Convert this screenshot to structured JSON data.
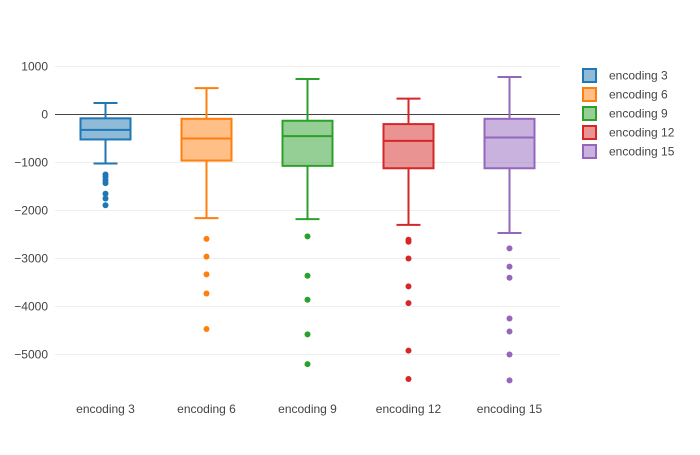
{
  "chart_data": {
    "type": "box",
    "title": "",
    "xlabel": "",
    "ylabel": "",
    "ylim": [
      -5900,
      1100
    ],
    "yticks": [
      1000,
      0,
      -1000,
      -2000,
      -3000,
      -4000,
      -5000
    ],
    "ytick_labels": [
      "1000",
      "0",
      "−1000",
      "−2000",
      "−3000",
      "−4000",
      "−5000"
    ],
    "grid": true,
    "legend_position": "top-right",
    "categories": [
      "encoding 3",
      "encoding 6",
      "encoding 9",
      "encoding 12",
      "encoding 15"
    ],
    "series": [
      {
        "name": "encoding 3",
        "color": "#1f77b4",
        "fill": "rgba(31,119,180,0.5)",
        "whisker_low": -1020,
        "q1": -520,
        "median": -320,
        "q3": -80,
        "whisker_high": 240,
        "outliers": [
          -1250,
          -1300,
          -1370,
          -1430,
          -1650,
          -1750,
          -1890
        ]
      },
      {
        "name": "encoding 6",
        "color": "#ff7f0e",
        "fill": "rgba(255,127,14,0.5)",
        "whisker_low": -2160,
        "q1": -960,
        "median": -500,
        "q3": -90,
        "whisker_high": 550,
        "outliers": [
          -2590,
          -2960,
          -3330,
          -3730,
          -4470
        ]
      },
      {
        "name": "encoding 9",
        "color": "#2ca02c",
        "fill": "rgba(44,160,44,0.5)",
        "whisker_low": -2180,
        "q1": -1070,
        "median": -450,
        "q3": -130,
        "whisker_high": 740,
        "outliers": [
          -2540,
          -3360,
          -3860,
          -4580,
          -5200
        ]
      },
      {
        "name": "encoding 12",
        "color": "#d62728",
        "fill": "rgba(214,39,40,0.5)",
        "whisker_low": -2300,
        "q1": -1120,
        "median": -550,
        "q3": -200,
        "whisker_high": 330,
        "outliers": [
          -2610,
          -2650,
          -3000,
          -3580,
          -3930,
          -4920,
          -5510
        ]
      },
      {
        "name": "encoding 15",
        "color": "#9467bd",
        "fill": "rgba(148,103,189,0.5)",
        "whisker_low": -2470,
        "q1": -1120,
        "median": -480,
        "q3": -90,
        "whisker_high": 780,
        "outliers": [
          -2790,
          -3170,
          -3400,
          -4250,
          -4520,
          -5000,
          -5540
        ]
      }
    ]
  }
}
